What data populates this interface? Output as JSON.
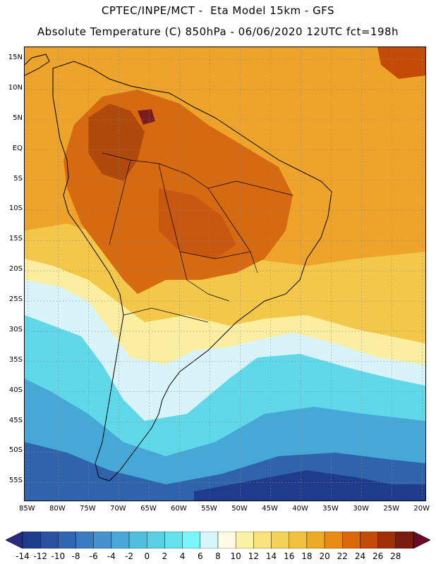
{
  "header": {
    "title_line1": "CPTEC/INPE/MCT -  Eta Model 15km - GFS",
    "title_line2": "Absolute Temperature (C) 850hPa - 06/06/2020 12UTC fct=198h"
  },
  "map": {
    "lat_ticks": [
      {
        "value": 15,
        "label": "15N"
      },
      {
        "value": 10,
        "label": "10N"
      },
      {
        "value": 5,
        "label": "5N"
      },
      {
        "value": 0,
        "label": "EQ"
      },
      {
        "value": -5,
        "label": "5S"
      },
      {
        "value": -10,
        "label": "10S"
      },
      {
        "value": -15,
        "label": "15S"
      },
      {
        "value": -20,
        "label": "20S"
      },
      {
        "value": -25,
        "label": "25S"
      },
      {
        "value": -30,
        "label": "30S"
      },
      {
        "value": -35,
        "label": "35S"
      },
      {
        "value": -40,
        "label": "40S"
      },
      {
        "value": -45,
        "label": "45S"
      },
      {
        "value": -50,
        "label": "50S"
      },
      {
        "value": -55,
        "label": "55S"
      }
    ],
    "lon_ticks": [
      {
        "value": -85,
        "label": "85W"
      },
      {
        "value": -80,
        "label": "80W"
      },
      {
        "value": -75,
        "label": "75W"
      },
      {
        "value": -70,
        "label": "70W"
      },
      {
        "value": -65,
        "label": "65W"
      },
      {
        "value": -60,
        "label": "60W"
      },
      {
        "value": -55,
        "label": "55W"
      },
      {
        "value": -50,
        "label": "50W"
      },
      {
        "value": -45,
        "label": "45W"
      },
      {
        "value": -40,
        "label": "40W"
      },
      {
        "value": -35,
        "label": "35W"
      },
      {
        "value": -30,
        "label": "30W"
      },
      {
        "value": -25,
        "label": "25W"
      },
      {
        "value": -20,
        "label": "20W"
      }
    ],
    "lon_range": [
      -85.5,
      -19.5
    ],
    "lat_range": [
      -58,
      17
    ]
  },
  "colorbar": {
    "labels": [
      "-14",
      "-12",
      "-10",
      "-8",
      "-6",
      "-4",
      "-2",
      "0",
      "2",
      "4",
      "6",
      "8",
      "10",
      "12",
      "14",
      "16",
      "18",
      "20",
      "22",
      "24",
      "26",
      "28"
    ],
    "colors": [
      "#1f3c8c",
      "#2a52a0",
      "#3366b0",
      "#3a7cc0",
      "#4592cc",
      "#4aa8d8",
      "#50bedf",
      "#5ad0e6",
      "#66e2ee",
      "#7af6fa",
      "#d6f6fb",
      "#fffae6",
      "#fbf2a4",
      "#f8e27a",
      "#f4d35a",
      "#f1c03e",
      "#eeaa24",
      "#e88c14",
      "#dc680c",
      "#c44a08",
      "#a03008",
      "#7a1c10"
    ],
    "low_arrow_color": "#2a2a80",
    "high_arrow_color": "#6a0a28"
  }
}
